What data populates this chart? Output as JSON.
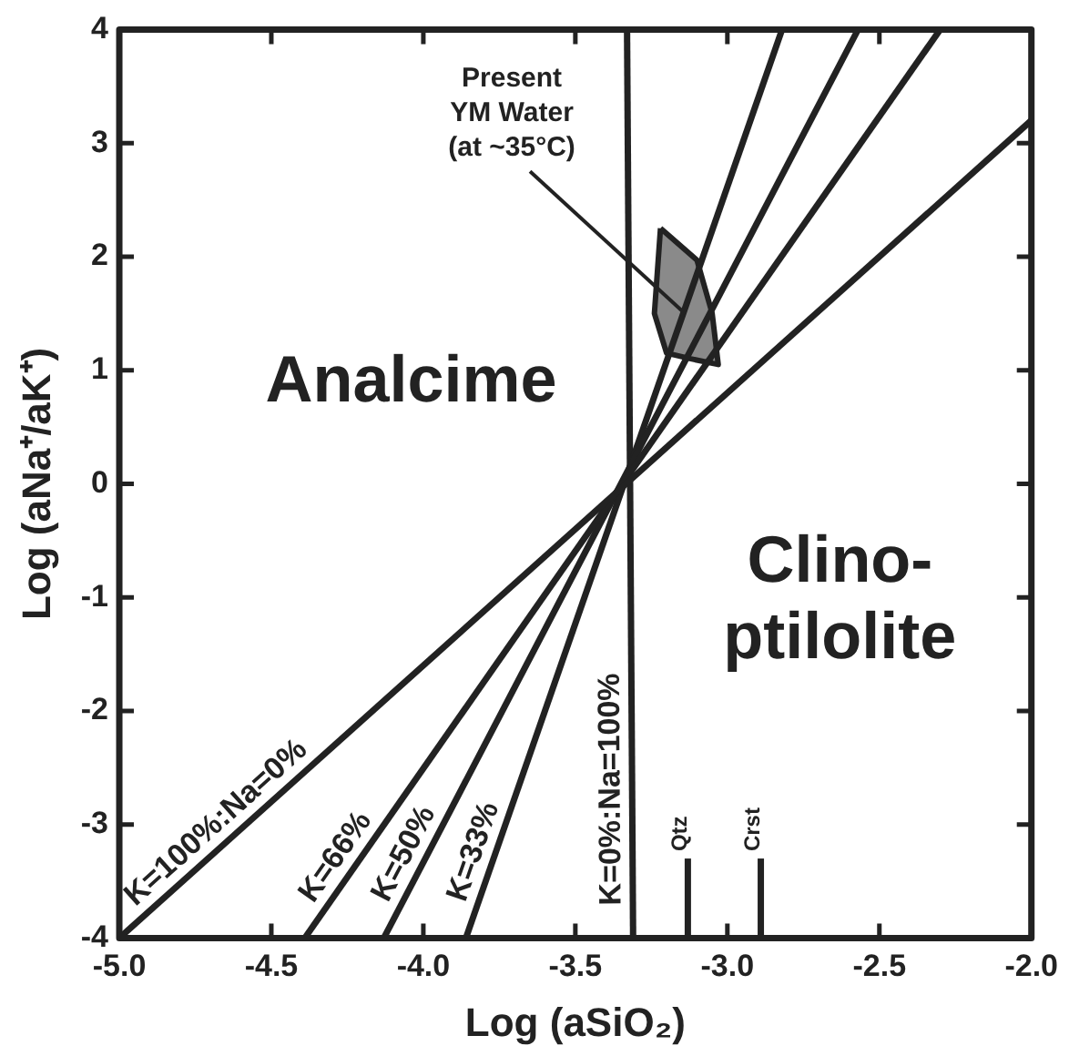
{
  "chart_data": {
    "type": "line",
    "xlabel": "Log (aSiO₂)",
    "ylabel": "Log (aNa⁺/aK⁺)",
    "xlim": [
      -5.0,
      -2.0
    ],
    "ylim": [
      -4,
      4
    ],
    "xticks": [
      {
        "value": -5,
        "label": "-5.0"
      },
      {
        "value": -4.5,
        "label": "-4.5"
      },
      {
        "value": -4,
        "label": "-4.0"
      },
      {
        "value": -3.5,
        "label": "-3.5"
      },
      {
        "value": -3,
        "label": "-3.0"
      },
      {
        "value": -2.5,
        "label": "-2.5"
      },
      {
        "value": -2,
        "label": "-2.0"
      }
    ],
    "yticks": [
      -4,
      -3,
      -2,
      -1,
      0,
      1,
      2,
      3,
      4
    ],
    "grid": false,
    "legend": false,
    "marker": "none",
    "series": [
      {
        "name": "K=100%:Na=0%",
        "color": "#222222",
        "x": [
          -5.0,
          -2.0
        ],
        "values": [
          -4,
          3.2
        ]
      },
      {
        "name": "K=66%",
        "color": "#222222",
        "x": [
          -4.39,
          -2.3
        ],
        "values": [
          -4,
          4
        ]
      },
      {
        "name": "K=50%",
        "color": "#222222",
        "x": [
          -4.13,
          -2.57
        ],
        "values": [
          -4,
          4
        ]
      },
      {
        "name": "K=33%",
        "color": "#222222",
        "x": [
          -3.86,
          -2.82
        ],
        "values": [
          -4,
          4
        ]
      },
      {
        "name": "K=0%:Na=100%",
        "color": "#222222",
        "x": [
          -3.31,
          -3.33
        ],
        "values": [
          -4,
          4
        ]
      },
      {
        "name": "Qtz",
        "color": "#222222",
        "x": [
          -3.13,
          -3.13
        ],
        "values": [
          -4,
          -3.3
        ]
      },
      {
        "name": "Crst",
        "color": "#222222",
        "x": [
          -2.89,
          -2.89
        ],
        "values": [
          -4,
          -3.3
        ]
      },
      {
        "type": "area",
        "color": "#8a8a8a",
        "x": [
          -3.22,
          -3.1,
          -3.05,
          -3.03,
          -3.12,
          -3.2,
          -3.24,
          -3.22
        ],
        "values": [
          2.25,
          1.97,
          1.5,
          1.05,
          1.1,
          1.15,
          1.5,
          2.25
        ]
      }
    ],
    "annotations": [
      {
        "text": "Present\nYM Water\n(at ~35°C)",
        "x": -3.14,
        "y": 1.5
      },
      "Analcime",
      "Clino-\nptilolite"
    ]
  }
}
